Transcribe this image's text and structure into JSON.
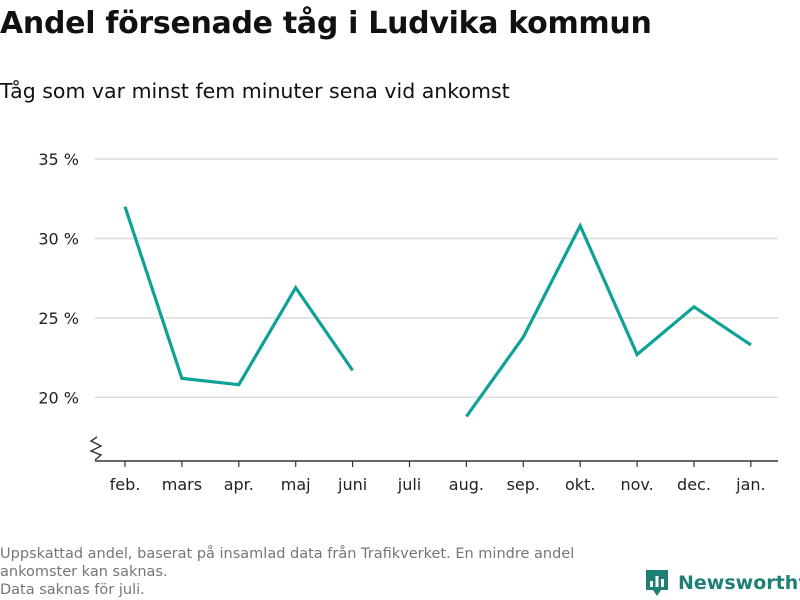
{
  "chart_data": {
    "type": "line",
    "title": "Andel försenade tåg i Ludvika kommun",
    "subtitle": "Tåg som var minst fem minuter sena vid ankomst",
    "categories": [
      "feb.",
      "mars",
      "apr.",
      "maj",
      "juni",
      "juli",
      "aug.",
      "sep.",
      "okt.",
      "nov.",
      "dec.",
      "jan."
    ],
    "series": [
      {
        "values": [
          32.0,
          21.2,
          20.8,
          26.9,
          21.7,
          null,
          18.8,
          23.8,
          30.8,
          22.7,
          25.7,
          23.3
        ]
      }
    ],
    "y_ticks": [
      20,
      25,
      30,
      35
    ],
    "y_tick_labels": [
      "20 %",
      "25 %",
      "30 %",
      "35 %"
    ],
    "ylim": [
      16,
      35
    ],
    "y_axis_break": true,
    "grid": true,
    "line_color": "#0ea195",
    "xlabel": "",
    "ylabel": ""
  },
  "footnote": {
    "line1": "Uppskattad andel, baserat på insamlad data från Trafikverket. En mindre andel ankomster kan saknas.",
    "line2": "Data saknas för juli."
  },
  "brand": {
    "name": "Newsworthy",
    "logo_icon": "bar-chart-badge-icon",
    "color": "#1e7f74"
  }
}
